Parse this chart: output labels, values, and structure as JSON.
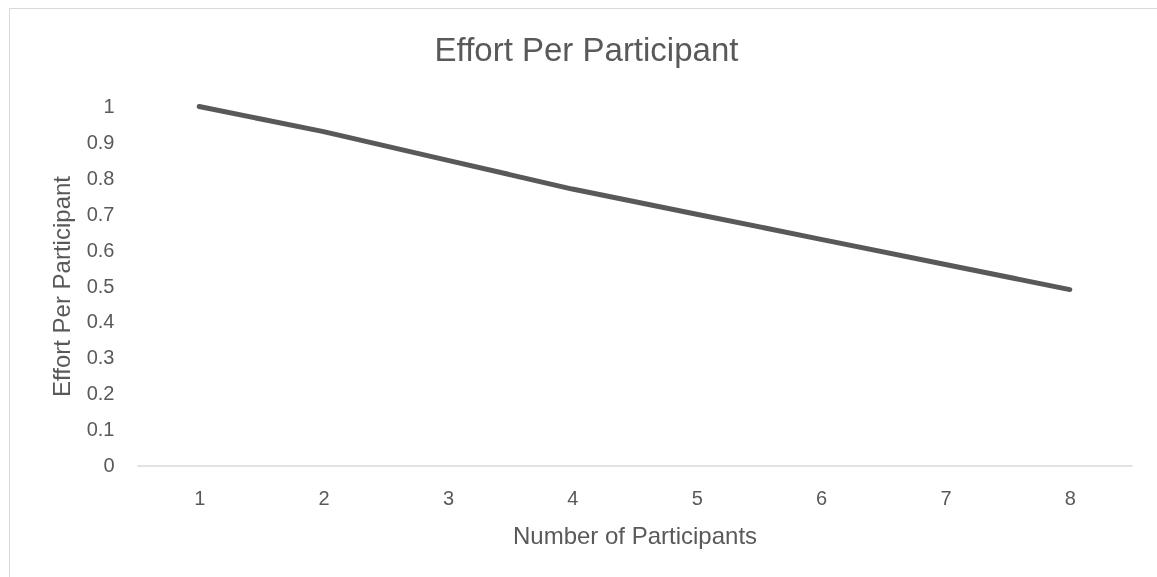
{
  "chart_data": {
    "type": "line",
    "title": "Effort Per Participant",
    "xlabel": "Number of Participants",
    "ylabel": "Effort Per Participant",
    "categories": [
      "1",
      "2",
      "3",
      "4",
      "5",
      "6",
      "7",
      "8"
    ],
    "series": [
      {
        "color": "#595959",
        "values": [
          1,
          0.93,
          0.85,
          0.77,
          0.7,
          0.63,
          0.56,
          0.49
        ]
      }
    ],
    "ylim": [
      0,
      1
    ],
    "yticks": [
      0,
      0.1,
      0.2,
      0.3,
      0.4,
      0.5,
      0.6,
      0.7,
      0.8,
      0.9,
      1
    ]
  }
}
